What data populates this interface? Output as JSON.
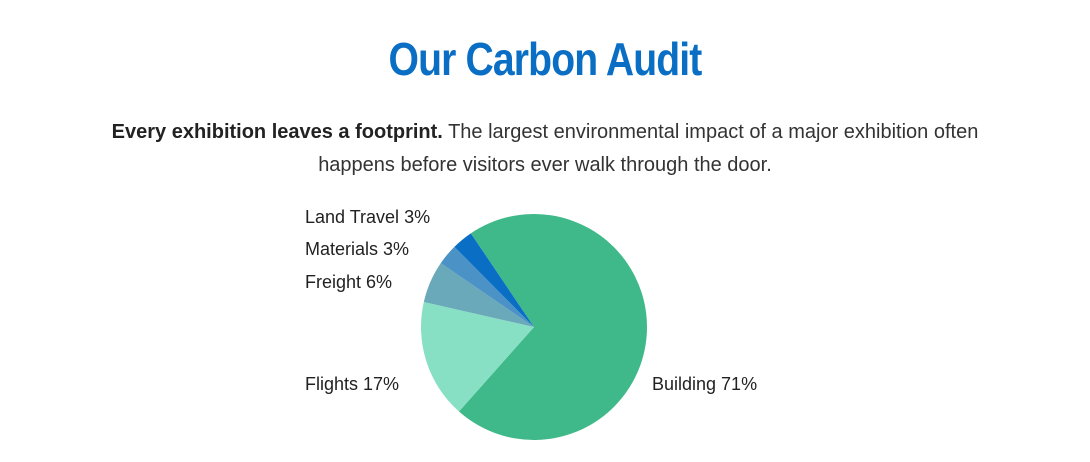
{
  "chart_data": {
    "type": "pie",
    "title": "Our Carbon Audit",
    "subtitle_lead": "Every exhibition leaves a footprint.",
    "subtitle": "The largest environmental impact of a major exhibition often happens before visitors ever walk through the door.",
    "categories": [
      "Building",
      "Flights",
      "Freight",
      "Materials",
      "Land Travel"
    ],
    "values": [
      71,
      17,
      6,
      3,
      3
    ],
    "value_labels": [
      "71%",
      "17%",
      "6%",
      "3%",
      "3%"
    ],
    "colors": [
      "#40b98a",
      "#88e0c4",
      "#6aa9b9",
      "#4b92c6",
      "#0a6fc4"
    ]
  }
}
